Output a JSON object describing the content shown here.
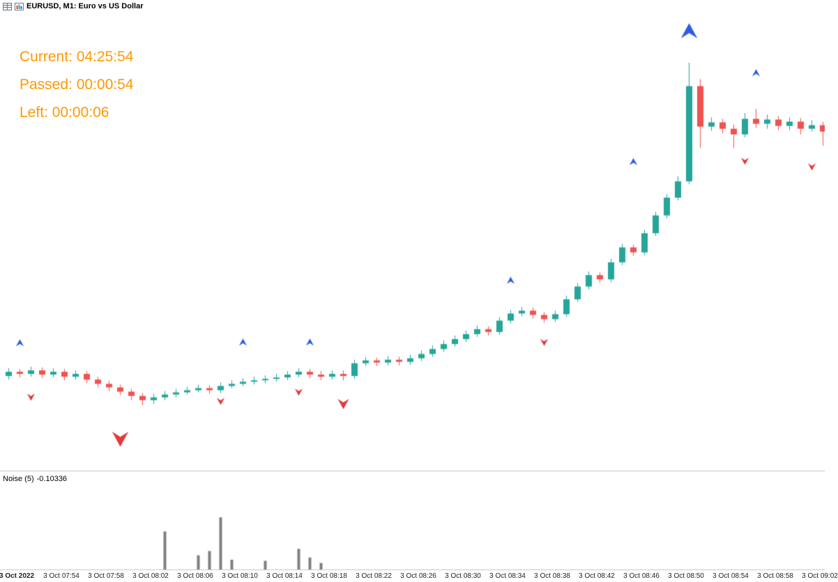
{
  "window": {
    "title": "EURUSD, M1:  Euro vs US Dollar"
  },
  "timer": {
    "lines": [
      "Current: 04:25:54",
      "Passed: 00:00:54",
      "Left: 00:00:06"
    ],
    "color": "#ff9800"
  },
  "indicator": {
    "name": "Noise (5)",
    "value": "-0.10336"
  },
  "colors": {
    "bull": "#26a69a",
    "bear": "#ef5350",
    "arrow_up": "#2e5ce6",
    "arrow_down": "#e23a3a",
    "histogram": "#7f7f7f",
    "separator": "#c4c4c4",
    "axis_text": "#222222"
  },
  "chart_data": {
    "type": "candlestick",
    "symbol": "EURUSD",
    "timeframe": "M1",
    "title": "EURUSD, M1: Euro vs US Dollar",
    "grid": false,
    "candles": [
      [
        0.98228,
        0.9825,
        0.98218,
        0.9824
      ],
      [
        0.9824,
        0.98248,
        0.98224,
        0.98234
      ],
      [
        0.98234,
        0.98254,
        0.98226,
        0.98244
      ],
      [
        0.98244,
        0.98252,
        0.98222,
        0.98232
      ],
      [
        0.98232,
        0.9825,
        0.98224,
        0.9824
      ],
      [
        0.9824,
        0.98248,
        0.98216,
        0.98226
      ],
      [
        0.98226,
        0.98244,
        0.98218,
        0.98234
      ],
      [
        0.98234,
        0.98242,
        0.98208,
        0.98218
      ],
      [
        0.98218,
        0.98226,
        0.98196,
        0.98206
      ],
      [
        0.98206,
        0.98214,
        0.98186,
        0.98196
      ],
      [
        0.98196,
        0.98204,
        0.98174,
        0.98184
      ],
      [
        0.98184,
        0.98192,
        0.9816,
        0.98172
      ],
      [
        0.98172,
        0.9818,
        0.98146,
        0.9816
      ],
      [
        0.9816,
        0.98178,
        0.9815,
        0.98168
      ],
      [
        0.98168,
        0.98186,
        0.9816,
        0.98176
      ],
      [
        0.98176,
        0.98192,
        0.98168,
        0.98182
      ],
      [
        0.98182,
        0.98198,
        0.98176,
        0.98188
      ],
      [
        0.98188,
        0.98204,
        0.98182,
        0.98194
      ],
      [
        0.98194,
        0.98202,
        0.98178,
        0.98188
      ],
      [
        0.98188,
        0.9821,
        0.9818,
        0.982
      ],
      [
        0.982,
        0.98216,
        0.98194,
        0.98206
      ],
      [
        0.98206,
        0.98222,
        0.982,
        0.98212
      ],
      [
        0.98212,
        0.98226,
        0.98204,
        0.98216
      ],
      [
        0.98216,
        0.9823,
        0.98208,
        0.9822
      ],
      [
        0.9822,
        0.98234,
        0.98212,
        0.98224
      ],
      [
        0.98224,
        0.98242,
        0.98216,
        0.98232
      ],
      [
        0.98232,
        0.9825,
        0.98224,
        0.9824
      ],
      [
        0.9824,
        0.98248,
        0.98222,
        0.98232
      ],
      [
        0.98232,
        0.98242,
        0.98216,
        0.98226
      ],
      [
        0.98226,
        0.98244,
        0.98218,
        0.98234
      ],
      [
        0.98234,
        0.98244,
        0.98216,
        0.98228
      ],
      [
        0.98228,
        0.98274,
        0.9822,
        0.98264
      ],
      [
        0.98264,
        0.98282,
        0.98256,
        0.98272
      ],
      [
        0.98272,
        0.9828,
        0.98256,
        0.98266
      ],
      [
        0.98266,
        0.98284,
        0.98258,
        0.98274
      ],
      [
        0.98274,
        0.98282,
        0.98258,
        0.98268
      ],
      [
        0.98268,
        0.98288,
        0.9826,
        0.98278
      ],
      [
        0.98278,
        0.983,
        0.9827,
        0.9829
      ],
      [
        0.9829,
        0.98314,
        0.98282,
        0.98304
      ],
      [
        0.98304,
        0.98328,
        0.98296,
        0.98318
      ],
      [
        0.98318,
        0.98342,
        0.9831,
        0.98332
      ],
      [
        0.98332,
        0.98356,
        0.98324,
        0.98346
      ],
      [
        0.98346,
        0.9837,
        0.98338,
        0.9836
      ],
      [
        0.9836,
        0.98368,
        0.98342,
        0.98352
      ],
      [
        0.98352,
        0.98394,
        0.98344,
        0.98384
      ],
      [
        0.98384,
        0.98414,
        0.98376,
        0.98404
      ],
      [
        0.98404,
        0.98422,
        0.98396,
        0.98412
      ],
      [
        0.98412,
        0.9842,
        0.9839,
        0.984
      ],
      [
        0.984,
        0.98408,
        0.98378,
        0.98388
      ],
      [
        0.98388,
        0.98412,
        0.9838,
        0.98402
      ],
      [
        0.98402,
        0.98454,
        0.98394,
        0.98444
      ],
      [
        0.98444,
        0.9849,
        0.98436,
        0.9848
      ],
      [
        0.9848,
        0.98522,
        0.98472,
        0.98512
      ],
      [
        0.98512,
        0.9852,
        0.9849,
        0.985
      ],
      [
        0.985,
        0.98558,
        0.98492,
        0.98548
      ],
      [
        0.98548,
        0.986,
        0.9854,
        0.9859
      ],
      [
        0.9859,
        0.98598,
        0.98566,
        0.98576
      ],
      [
        0.98576,
        0.9864,
        0.98568,
        0.9863
      ],
      [
        0.9863,
        0.9869,
        0.98622,
        0.9868
      ],
      [
        0.9868,
        0.9874,
        0.98672,
        0.9873
      ],
      [
        0.9873,
        0.9879,
        0.98722,
        0.98776
      ],
      [
        0.98776,
        0.9911,
        0.98768,
        0.99044
      ],
      [
        0.99044,
        0.99064,
        0.9887,
        0.9893
      ],
      [
        0.9893,
        0.98956,
        0.98918,
        0.98942
      ],
      [
        0.98942,
        0.98952,
        0.9891,
        0.98924
      ],
      [
        0.98924,
        0.98936,
        0.9887,
        0.98908
      ],
      [
        0.98908,
        0.98968,
        0.989,
        0.98952
      ],
      [
        0.98952,
        0.9898,
        0.98926,
        0.98938
      ],
      [
        0.98938,
        0.98964,
        0.98924,
        0.9895
      ],
      [
        0.9895,
        0.9896,
        0.9892,
        0.98932
      ],
      [
        0.98932,
        0.98956,
        0.9892,
        0.98944
      ],
      [
        0.98944,
        0.98954,
        0.98908,
        0.98924
      ],
      [
        0.98924,
        0.98948,
        0.98916,
        0.98934
      ],
      [
        0.98934,
        0.98944,
        0.98876,
        0.98916
      ]
    ],
    "x_axis_labels": [
      {
        "t": "3 Oct 2022",
        "i": 1,
        "date": true
      },
      {
        "t": "3 Oct 07:54",
        "i": 5
      },
      {
        "t": "3 Oct 07:58",
        "i": 9
      },
      {
        "t": "3 Oct 08:02",
        "i": 13
      },
      {
        "t": "3 Oct 08:06",
        "i": 17
      },
      {
        "t": "3 Oct 08:10",
        "i": 21
      },
      {
        "t": "3 Oct 08:14",
        "i": 25
      },
      {
        "t": "3 Oct 08:18",
        "i": 29
      },
      {
        "t": "3 Oct 08:22",
        "i": 33
      },
      {
        "t": "3 Oct 08:26",
        "i": 37
      },
      {
        "t": "3 Oct 08:30",
        "i": 41
      },
      {
        "t": "3 Oct 08:34",
        "i": 45
      },
      {
        "t": "3 Oct 08:38",
        "i": 49
      },
      {
        "t": "3 Oct 08:42",
        "i": 53
      },
      {
        "t": "3 Oct 08:46",
        "i": 57
      },
      {
        "t": "3 Oct 08:50",
        "i": 61
      },
      {
        "t": "3 Oct 08:54",
        "i": 65
      },
      {
        "t": "3 Oct 08:58",
        "i": 69
      },
      {
        "t": "3 Oct 09:02",
        "i": 73
      }
    ],
    "markers": [
      {
        "i": 1,
        "price": 0.98314,
        "dir": "up",
        "size": 9
      },
      {
        "i": 2,
        "price": 0.98176,
        "dir": "down",
        "size": 9
      },
      {
        "i": 10,
        "price": 0.98066,
        "dir": "down",
        "size": 19
      },
      {
        "i": 19,
        "price": 0.98164,
        "dir": "down",
        "size": 9
      },
      {
        "i": 21,
        "price": 0.98316,
        "dir": "up",
        "size": 9
      },
      {
        "i": 26,
        "price": 0.9819,
        "dir": "down",
        "size": 9
      },
      {
        "i": 27,
        "price": 0.98316,
        "dir": "up",
        "size": 9
      },
      {
        "i": 30,
        "price": 0.9816,
        "dir": "down",
        "size": 13
      },
      {
        "i": 45,
        "price": 0.9849,
        "dir": "up",
        "size": 9
      },
      {
        "i": 48,
        "price": 0.9833,
        "dir": "down",
        "size": 9
      },
      {
        "i": 56,
        "price": 0.98824,
        "dir": "up",
        "size": 9
      },
      {
        "i": 61,
        "price": 0.99184,
        "dir": "up",
        "size": 19
      },
      {
        "i": 66,
        "price": 0.9884,
        "dir": "down",
        "size": 9
      },
      {
        "i": 67,
        "price": 0.99074,
        "dir": "up",
        "size": 9
      },
      {
        "i": 72,
        "price": 0.98824,
        "dir": "down",
        "size": 9
      }
    ],
    "noise_indicator": {
      "name": "Noise",
      "period": 5,
      "current": -0.10336,
      "values": [
        0,
        0,
        0,
        0,
        0,
        0,
        0,
        0,
        0,
        0,
        0,
        0,
        0,
        0,
        0.35,
        0,
        0,
        0.13,
        0.17,
        0.48,
        0.09,
        0,
        0,
        0.08,
        0,
        0,
        0.19,
        0.11,
        0.06,
        0,
        0,
        0,
        0,
        0,
        0,
        0,
        0,
        0,
        0,
        0,
        0,
        0,
        0,
        0,
        0,
        0,
        0,
        0,
        0,
        0,
        0,
        0,
        0,
        0,
        0,
        0,
        0,
        0,
        0,
        0,
        0,
        0,
        0,
        0,
        0,
        0,
        0,
        0,
        0,
        0,
        0,
        0,
        0,
        0
      ]
    }
  }
}
